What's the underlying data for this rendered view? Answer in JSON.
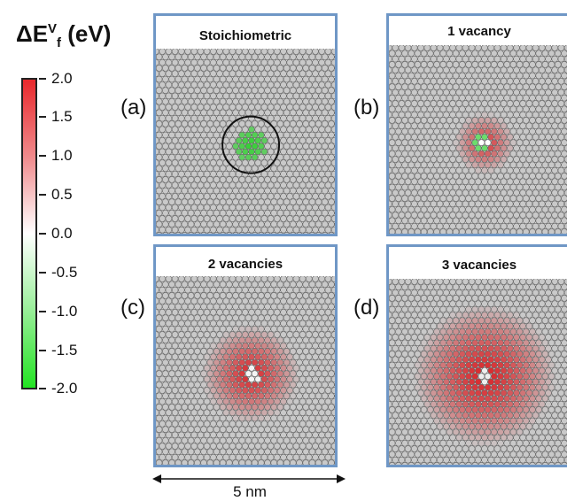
{
  "colorbar": {
    "title_main": "ΔE",
    "title_sup": "V",
    "title_sub": "f",
    "title_unit": " (eV)",
    "ticks": [
      "2.0",
      "1.5",
      "1.0",
      "0.5",
      "0.0",
      "-0.5",
      "-1.0",
      "-1.5",
      "-2.0"
    ],
    "max_color": "#e8282c",
    "mid_color": "#ffffff",
    "min_color": "#22e322"
  },
  "panels": [
    {
      "letter": "(a)",
      "title": "Stoichiometric",
      "defect": "green",
      "vacancies": 0,
      "circled": true
    },
    {
      "letter": "(b)",
      "title": "1 vacancy",
      "defect": "mixed",
      "vacancies": 1,
      "circled": false
    },
    {
      "letter": "(c)",
      "title": "2 vacancies",
      "defect": "red",
      "vacancies": 2,
      "circled": false
    },
    {
      "letter": "(d)",
      "title": "3 vacancies",
      "defect": "red-wide",
      "vacancies": 3,
      "circled": false
    }
  ],
  "scale_bar": {
    "label": "5 nm"
  },
  "colors": {
    "panel_border": "#6f97c6",
    "atom": "#c9c9c9",
    "atom_edge": "#6b6b6b"
  }
}
